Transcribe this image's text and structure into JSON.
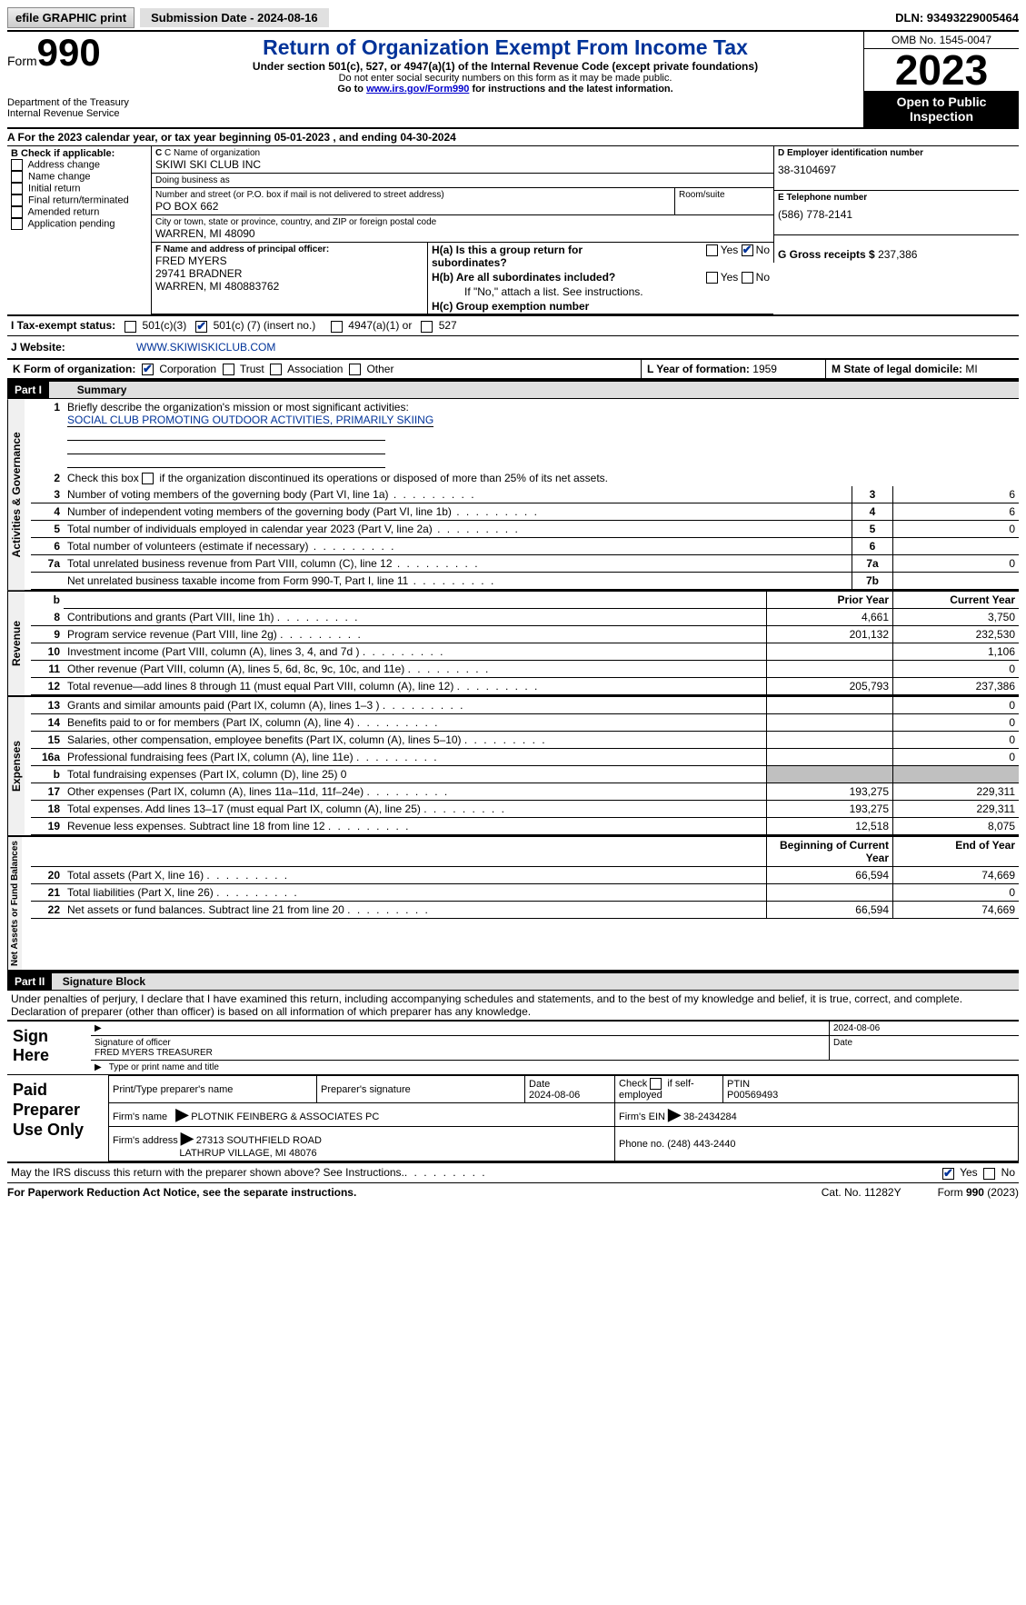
{
  "topbar": {
    "efile": "efile GRAPHIC print",
    "submission_label": "Submission Date - 2024-08-16",
    "dln": "DLN: 93493229005464"
  },
  "header": {
    "form_prefix": "Form",
    "form_number": "990",
    "dept": "Department of the Treasury Internal Revenue Service",
    "title": "Return of Organization Exempt From Income Tax",
    "subtitle": "Under section 501(c), 527, or 4947(a)(1) of the Internal Revenue Code (except private foundations)",
    "note1": "Do not enter social security numbers on this form as it may be made public.",
    "note2_pre": "Go to ",
    "note2_link": "www.irs.gov/Form990",
    "note2_post": " for instructions and the latest information.",
    "omb": "OMB No. 1545-0047",
    "year": "2023",
    "open": "Open to Public Inspection"
  },
  "sectionA": {
    "text_pre": "A For the 2023 calendar year, or tax year beginning ",
    "begin": "05-01-2023",
    "mid": "   , and ending ",
    "end": "04-30-2024"
  },
  "B": {
    "label": "B Check if applicable:",
    "items": [
      "Address change",
      "Name change",
      "Initial return",
      "Final return/terminated",
      "Amended return",
      "Application pending"
    ]
  },
  "C": {
    "name_label": "C Name of organization",
    "name": "SKIWI SKI CLUB INC",
    "dba_label": "Doing business as",
    "dba": "",
    "addr_label": "Number and street (or P.O. box if mail is not delivered to street address)",
    "addr": "PO BOX 662",
    "room_label": "Room/suite",
    "city_label": "City or town, state or province, country, and ZIP or foreign postal code",
    "city": "WARREN, MI  48090"
  },
  "D": {
    "label": "D Employer identification number",
    "value": "38-3104697"
  },
  "E": {
    "label": "E Telephone number",
    "value": "(586) 778-2141"
  },
  "G": {
    "label": "G Gross receipts $",
    "value": "237,386"
  },
  "F": {
    "label": "F  Name and address of principal officer:",
    "l1": "FRED MYERS",
    "l2": "29741 BRADNER",
    "l3": "WARREN, MI  480883762"
  },
  "H": {
    "a": "H(a)  Is this a group return for subordinates?",
    "b": "H(b)  Are all subordinates included?",
    "b_note": "If \"No,\" attach a list. See instructions.",
    "c": "H(c)  Group exemption number",
    "yes": "Yes",
    "no": "No"
  },
  "I": {
    "label": "I   Tax-exempt status:",
    "c3": "501(c)(3)",
    "c_pre": "501(c) (",
    "c_val": "7",
    "c_post": ") (insert no.)",
    "a4947": "4947(a)(1) or",
    "s527": "527"
  },
  "J": {
    "label": "J   Website:",
    "value": "WWW.SKIWISKICLUB.COM"
  },
  "K": {
    "label": "K Form of organization:",
    "corp": "Corporation",
    "trust": "Trust",
    "assoc": "Association",
    "other": "Other"
  },
  "L": {
    "label": "L Year of formation:",
    "value": "1959"
  },
  "M": {
    "label": "M State of legal domicile:",
    "value": "MI"
  },
  "part1_label": "Part I",
  "part1_title": "Summary",
  "summary": {
    "line1_label": "Briefly describe the organization's mission or most significant activities:",
    "line1_text": "SOCIAL CLUB PROMOTING OUTDOOR ACTIVITIES, PRIMARILY SKIING",
    "line2": "Check this box         if the organization discontinued its operations or disposed of more than 25% of its net assets.",
    "lines": [
      {
        "n": "3",
        "t": "Number of voting members of the governing body (Part VI, line 1a)",
        "ln": "3",
        "v": "6"
      },
      {
        "n": "4",
        "t": "Number of independent voting members of the governing body (Part VI, line 1b)",
        "ln": "4",
        "v": "6"
      },
      {
        "n": "5",
        "t": "Total number of individuals employed in calendar year 2023 (Part V, line 2a)",
        "ln": "5",
        "v": "0"
      },
      {
        "n": "6",
        "t": "Total number of volunteers (estimate if necessary)",
        "ln": "6",
        "v": ""
      },
      {
        "n": "7a",
        "t": "Total unrelated business revenue from Part VIII, column (C), line 12",
        "ln": "7a",
        "v": "0"
      },
      {
        "n": "",
        "t": "Net unrelated business taxable income from Form 990-T, Part I, line 11",
        "ln": "7b",
        "v": ""
      }
    ],
    "prior_label": "Prior Year",
    "curr_label": "Current Year",
    "rev": [
      {
        "n": "8",
        "t": "Contributions and grants (Part VIII, line 1h)",
        "p": "4,661",
        "c": "3,750"
      },
      {
        "n": "9",
        "t": "Program service revenue (Part VIII, line 2g)",
        "p": "201,132",
        "c": "232,530"
      },
      {
        "n": "10",
        "t": "Investment income (Part VIII, column (A), lines 3, 4, and 7d )",
        "p": "",
        "c": "1,106"
      },
      {
        "n": "11",
        "t": "Other revenue (Part VIII, column (A), lines 5, 6d, 8c, 9c, 10c, and 11e)",
        "p": "",
        "c": "0"
      },
      {
        "n": "12",
        "t": "Total revenue—add lines 8 through 11 (must equal Part VIII, column (A), line 12)",
        "p": "205,793",
        "c": "237,386"
      }
    ],
    "exp": [
      {
        "n": "13",
        "t": "Grants and similar amounts paid (Part IX, column (A), lines 1–3 )",
        "p": "",
        "c": "0"
      },
      {
        "n": "14",
        "t": "Benefits paid to or for members (Part IX, column (A), line 4)",
        "p": "",
        "c": "0"
      },
      {
        "n": "15",
        "t": "Salaries, other compensation, employee benefits (Part IX, column (A), lines 5–10)",
        "p": "",
        "c": "0"
      },
      {
        "n": "16a",
        "t": "Professional fundraising fees (Part IX, column (A), line 11e)",
        "p": "",
        "c": "0"
      },
      {
        "n": "b",
        "t": "Total fundraising expenses (Part IX, column (D), line 25) 0",
        "p": "grey",
        "c": "grey",
        "small": true
      },
      {
        "n": "17",
        "t": "Other expenses (Part IX, column (A), lines 11a–11d, 11f–24e)",
        "p": "193,275",
        "c": "229,311"
      },
      {
        "n": "18",
        "t": "Total expenses. Add lines 13–17 (must equal Part IX, column (A), line 25)",
        "p": "193,275",
        "c": "229,311"
      },
      {
        "n": "19",
        "t": "Revenue less expenses. Subtract line 18 from line 12",
        "p": "12,518",
        "c": "8,075"
      }
    ],
    "bal_hdr_l": "Beginning of Current Year",
    "bal_hdr_r": "End of Year",
    "bal": [
      {
        "n": "20",
        "t": "Total assets (Part X, line 16)",
        "p": "66,594",
        "c": "74,669"
      },
      {
        "n": "21",
        "t": "Total liabilities (Part X, line 26)",
        "p": "",
        "c": "0"
      },
      {
        "n": "22",
        "t": "Net assets or fund balances. Subtract line 21 from line 20",
        "p": "66,594",
        "c": "74,669"
      }
    ],
    "side_ag": "Activities & Governance",
    "side_rev": "Revenue",
    "side_exp": "Expenses",
    "side_bal": "Net Assets or Fund Balances"
  },
  "part2_label": "Part II",
  "part2_title": "Signature Block",
  "part2_decl": "Under penalties of perjury, I declare that I have examined this return, including accompanying schedules and statements, and to the best of my knowledge and belief, it is true, correct, and complete. Declaration of preparer (other than officer) is based on all information of which preparer has any knowledge.",
  "sign": {
    "here": "Sign Here",
    "date": "2024-08-06",
    "sig_label": "Signature of officer",
    "name": "FRED MYERS  TREASURER",
    "name_label": "Type or print name and title",
    "date_label": "Date"
  },
  "prep": {
    "label": "Paid Preparer Use Only",
    "h1": "Print/Type preparer's name",
    "h2": "Preparer's signature",
    "h3": "Date",
    "h3v": "2024-08-06",
    "h4": "Check         if self-employed",
    "h5": "PTIN",
    "h5v": "P00569493",
    "firm_label": "Firm's name",
    "firm": "PLOTNIK FEINBERG & ASSOCIATES PC",
    "ein_label": "Firm's EIN",
    "ein": "38-2434284",
    "addr_label": "Firm's address",
    "addr1": "27313 SOUTHFIELD ROAD",
    "addr2": "LATHRUP VILLAGE, MI  48076",
    "phone_label": "Phone no.",
    "phone": "(248) 443-2440"
  },
  "discuss": {
    "text": "May the IRS discuss this return with the preparer shown above? See Instructions.",
    "yes": "Yes",
    "no": "No"
  },
  "footer": {
    "l": "For Paperwork Reduction Act Notice, see the separate instructions.",
    "m": "Cat. No. 11282Y",
    "r_pre": "Form ",
    "r_b": "990",
    "r_post": " (2023)"
  }
}
